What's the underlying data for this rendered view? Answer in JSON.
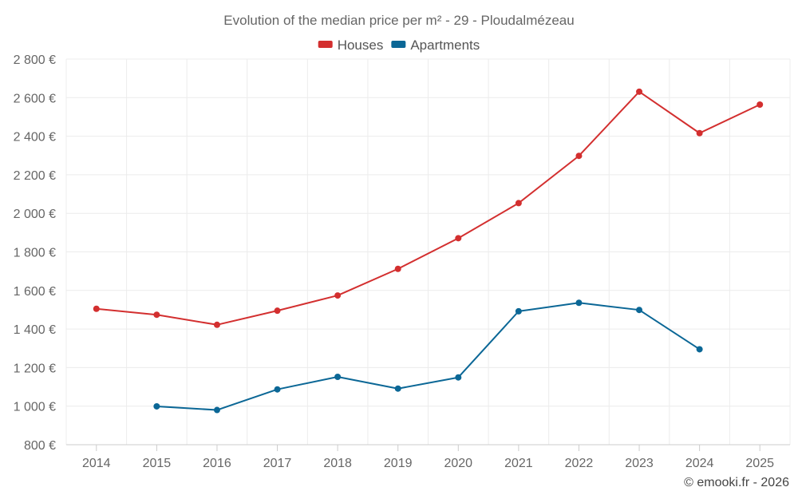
{
  "chart_data": {
    "type": "line",
    "title": "Evolution of the median price per m² - 29 - Ploudalmézeau",
    "categories": [
      "2014",
      "2015",
      "2016",
      "2017",
      "2018",
      "2019",
      "2020",
      "2021",
      "2022",
      "2023",
      "2024",
      "2025"
    ],
    "series": [
      {
        "name": "Houses",
        "color": "#d32f2f",
        "values": [
          1505,
          1474,
          1422,
          1495,
          1574,
          1712,
          1871,
          2053,
          2298,
          2631,
          2416,
          2564
        ]
      },
      {
        "name": "Apartments",
        "color": "#0b6796",
        "values": [
          null,
          999,
          980,
          1087,
          1152,
          1091,
          1149,
          1492,
          1536,
          1499,
          1295,
          null
        ]
      }
    ],
    "ylim": [
      800,
      2800
    ],
    "yticks": [
      800,
      1000,
      1200,
      1400,
      1600,
      1800,
      2000,
      2200,
      2400,
      2600,
      2800
    ],
    "ytick_labels": [
      "800 €",
      "1 000 €",
      "1 200 €",
      "1 400 €",
      "1 600 €",
      "1 800 €",
      "2 000 €",
      "2 200 €",
      "2 400 €",
      "2 600 €",
      "2 800 €"
    ],
    "xlabel": "",
    "ylabel": "",
    "grid": true,
    "legend_position": "top-center"
  },
  "credit": "© emooki.fr - 2026"
}
